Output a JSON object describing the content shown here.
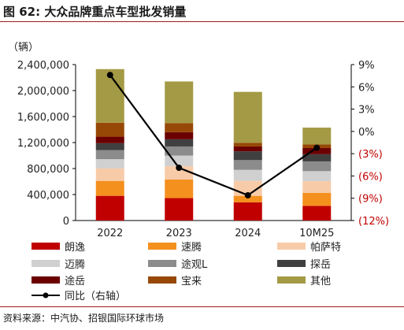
{
  "figure": {
    "title": "图 62: 大众品牌重点车型批发销量",
    "source": "资料来源：中汽协、招银国际环球市场"
  },
  "chart_data": {
    "type": "bar",
    "stacked": true,
    "categories": [
      "2022",
      "2023",
      "2024",
      "10M25"
    ],
    "y_unit": "（辆）",
    "ylim": [
      0,
      2400000
    ],
    "y_ticks": [
      "0",
      "400,000",
      "800,000",
      "1,200,000",
      "1,600,000",
      "2,000,000",
      "2,400,000"
    ],
    "y2lim": [
      -12,
      9
    ],
    "y2_ticks": [
      "(12%)",
      "(9%)",
      "(6%)",
      "(3%)",
      "0%",
      "3%",
      "6%",
      "9%"
    ],
    "series": [
      {
        "name": "朗逸",
        "color": "#c00000",
        "values": [
          380000,
          345000,
          280000,
          225000
        ]
      },
      {
        "name": "速腾",
        "color": "#f4901e",
        "values": [
          230000,
          285000,
          100000,
          200000
        ]
      },
      {
        "name": "帕萨特",
        "color": "#f8cba8",
        "values": [
          190000,
          205000,
          230000,
          180000
        ]
      },
      {
        "name": "迈腾",
        "color": "#d0d0d0",
        "values": [
          145000,
          165000,
          170000,
          155000
        ]
      },
      {
        "name": "途观L",
        "color": "#8c8c8c",
        "values": [
          140000,
          140000,
          150000,
          150000
        ]
      },
      {
        "name": "探岳",
        "color": "#404040",
        "values": [
          105000,
          110000,
          135000,
          110000
        ]
      },
      {
        "name": "途岳",
        "color": "#6b0000",
        "values": [
          100000,
          110000,
          75000,
          95000
        ]
      },
      {
        "name": "宝来",
        "color": "#974806",
        "values": [
          215000,
          140000,
          55000,
          55000
        ]
      },
      {
        "name": "其他",
        "color": "#a49a45",
        "values": [
          825000,
          640000,
          785000,
          260000
        ]
      }
    ],
    "line_series": {
      "name": "同比（右轴）",
      "color": "#000000",
      "axis": "right",
      "values": [
        7.6,
        -4.9,
        -8.6,
        -2.2
      ]
    },
    "legend": "bottom"
  }
}
